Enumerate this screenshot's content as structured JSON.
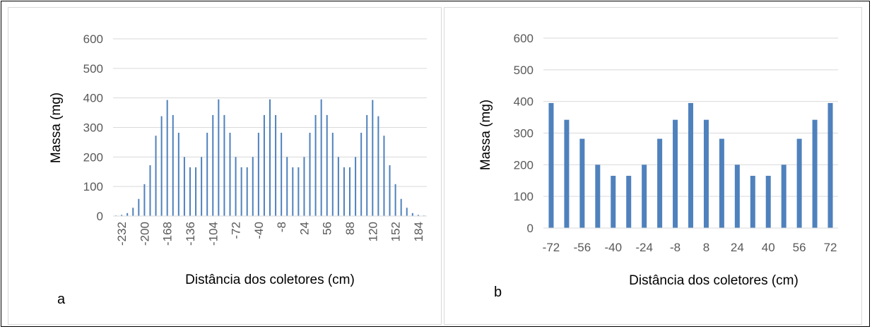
{
  "chart_data": [
    {
      "type": "bar",
      "panel_label": "a",
      "xlabel": "Distância dos coletores (cm)",
      "ylabel": "Massa (mg)",
      "ylim": [
        0,
        600
      ],
      "yticks": [
        0,
        100,
        200,
        300,
        400,
        500,
        600
      ],
      "grid": true,
      "color": "#4F81BD",
      "x": [
        -240,
        -232,
        -224,
        -216,
        -208,
        -200,
        -192,
        -184,
        -176,
        -168,
        -160,
        -152,
        -144,
        -136,
        -128,
        -120,
        -112,
        -104,
        -96,
        -88,
        -80,
        -72,
        -64,
        -56,
        -48,
        -40,
        -32,
        -24,
        -16,
        -8,
        0,
        8,
        16,
        24,
        32,
        40,
        48,
        56,
        64,
        72,
        80,
        88,
        96,
        104,
        112,
        120,
        128,
        136,
        144,
        152,
        160,
        168,
        176,
        184,
        192
      ],
      "values": [
        2,
        4,
        10,
        28,
        58,
        108,
        172,
        272,
        338,
        393,
        342,
        282,
        200,
        165,
        165,
        200,
        282,
        342,
        395,
        342,
        282,
        200,
        165,
        165,
        200,
        282,
        342,
        395,
        342,
        282,
        200,
        165,
        165,
        200,
        282,
        342,
        395,
        342,
        282,
        200,
        165,
        165,
        200,
        282,
        342,
        393,
        338,
        272,
        172,
        108,
        58,
        28,
        10,
        4,
        2
      ],
      "xtick_labels": [
        "-232",
        "-200",
        "-168",
        "-136",
        "-104",
        "-72",
        "-40",
        "-8",
        "24",
        "56",
        "88",
        "120",
        "152",
        "184"
      ]
    },
    {
      "type": "bar",
      "panel_label": "b",
      "xlabel": "Distância dos coletores (cm)",
      "ylabel": "Massa (mg)",
      "ylim": [
        0,
        600
      ],
      "yticks": [
        0,
        100,
        200,
        300,
        400,
        500,
        600
      ],
      "grid": true,
      "color": "#4F81BD",
      "x": [
        -72,
        -64,
        -56,
        -48,
        -40,
        -32,
        -24,
        -16,
        -8,
        0,
        8,
        16,
        24,
        32,
        40,
        48,
        56,
        64,
        72
      ],
      "values": [
        395,
        342,
        282,
        200,
        165,
        165,
        200,
        282,
        342,
        395,
        342,
        282,
        200,
        165,
        165,
        200,
        282,
        342,
        395
      ],
      "xtick_labels": [
        "-72",
        "-56",
        "-40",
        "-24",
        "-8",
        "8",
        "24",
        "40",
        "56",
        "72"
      ]
    }
  ]
}
